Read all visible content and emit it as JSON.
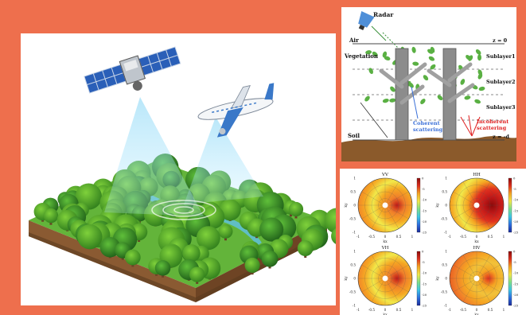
{
  "background_color": "#ee6f4d",
  "scattering_model": {
    "radar_label": "Radar",
    "air_label": "Air",
    "vegetation_label": "Vegetation",
    "soil_label": "Soil",
    "top_boundary": "z = 0",
    "bottom_boundary": "z = -d",
    "sublayers": [
      "Sublayer1",
      "Sublayer2",
      "Sublayer3"
    ],
    "coherent_label_1": "Coherent",
    "coherent_label_2": "scattering",
    "incoherent_label_1": "Incoherent",
    "incoherent_label_2": "scattering",
    "coherent_color": "#3a6fd8",
    "incoherent_color": "#e02020"
  },
  "polar_plots": {
    "titles": [
      "VV",
      "HH",
      "VH",
      "HV"
    ],
    "x_ticks": [
      "-1",
      "-0.5",
      "0",
      "0.5",
      "1"
    ],
    "y_ticks": [
      "1",
      "0.5",
      "0",
      "-0.5",
      "-1"
    ],
    "colorbar_ticks": [
      "0",
      "-5",
      "-10",
      "-15",
      "-20",
      "-25"
    ],
    "x_axis_label": "kx",
    "y_axis_label": "ky"
  },
  "illustration": {
    "satellite_icon": "satellite-icon",
    "airplane_icon": "airplane-icon",
    "forest_icon": "forest-block-icon"
  }
}
